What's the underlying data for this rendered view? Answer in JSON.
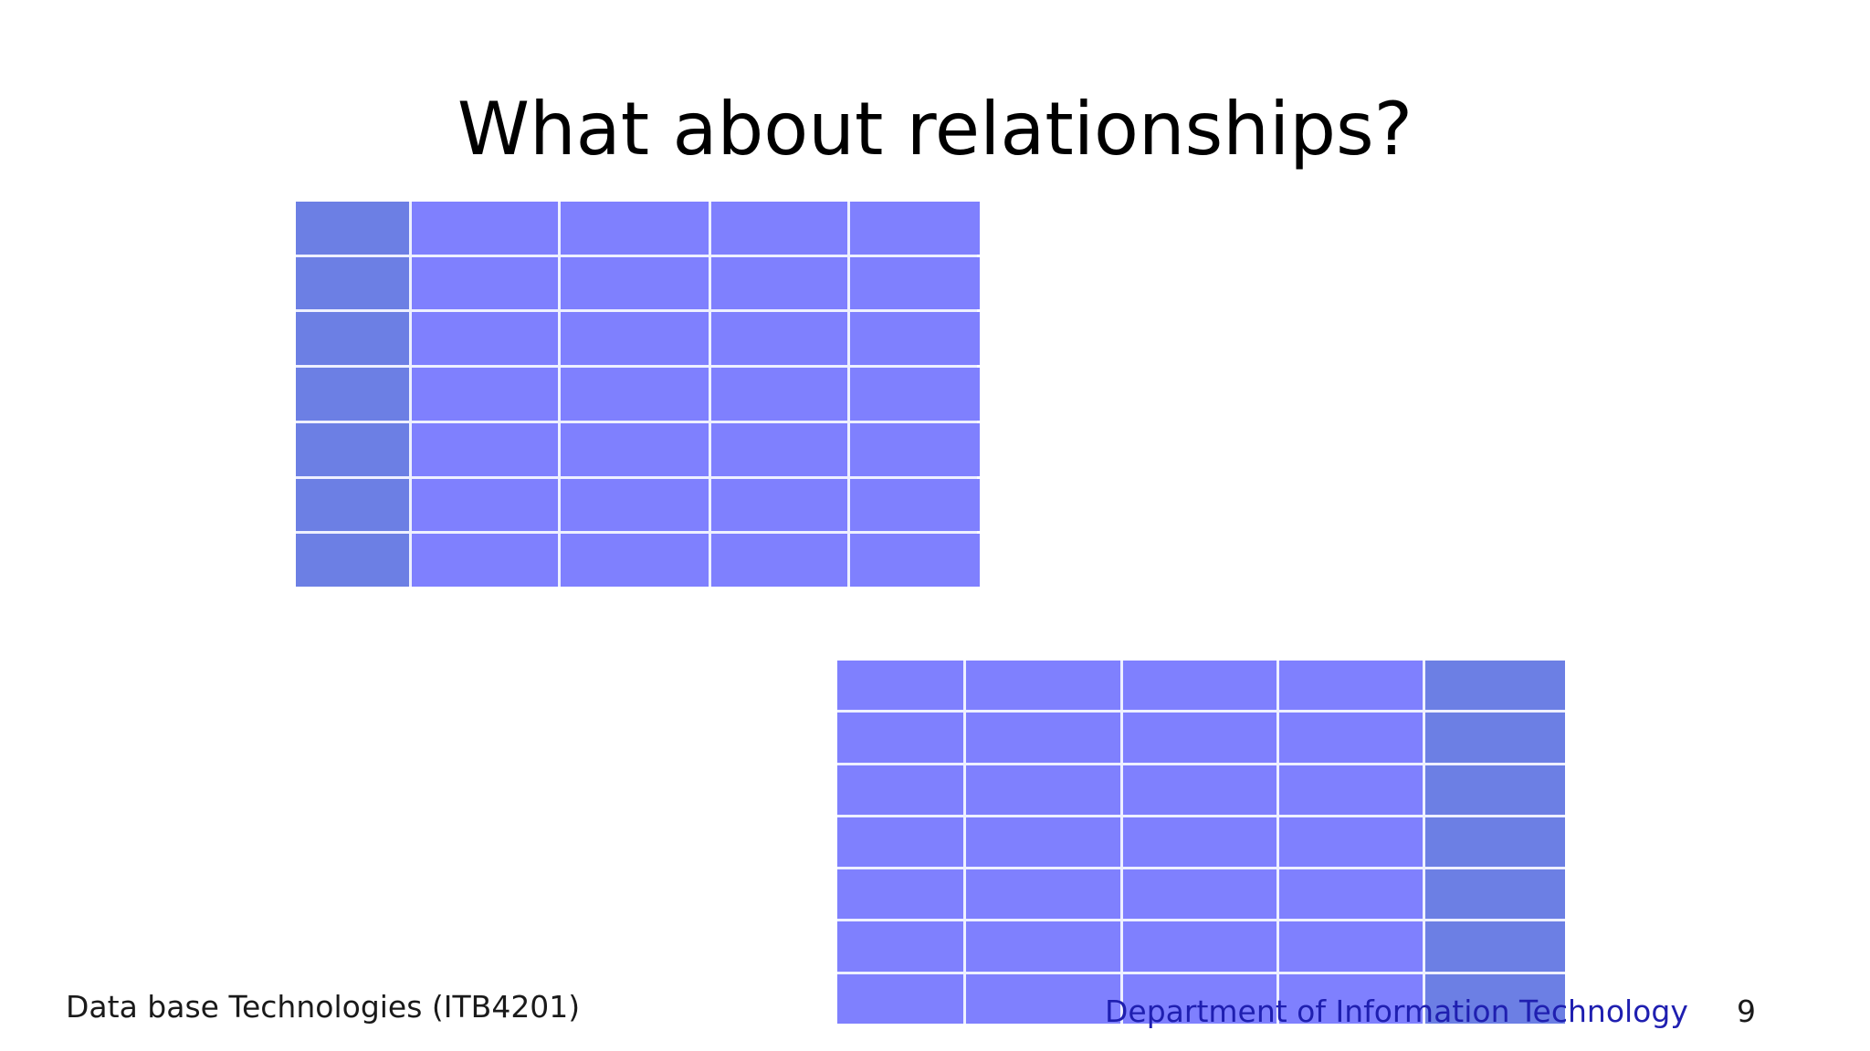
{
  "slide": {
    "title": "What about relationships?",
    "footer": {
      "course": "Data base Technologies (ITB4201)",
      "department": "Department of Information Technology",
      "page_number": "9"
    }
  },
  "tables": [
    {
      "name": "table-a",
      "rows": 7,
      "columns": 5,
      "key_column": 0,
      "cell_color": "#7f80fe",
      "key_color": "#6c7fe4"
    },
    {
      "name": "table-b",
      "rows": 7,
      "columns": 5,
      "key_column": 4,
      "cell_color": "#7f80fe",
      "key_color": "#6c7fe4"
    }
  ],
  "colors": {
    "background": "#ffffff",
    "grid_lines": "#eef0ff",
    "department_accent": "#1f1fb0"
  }
}
